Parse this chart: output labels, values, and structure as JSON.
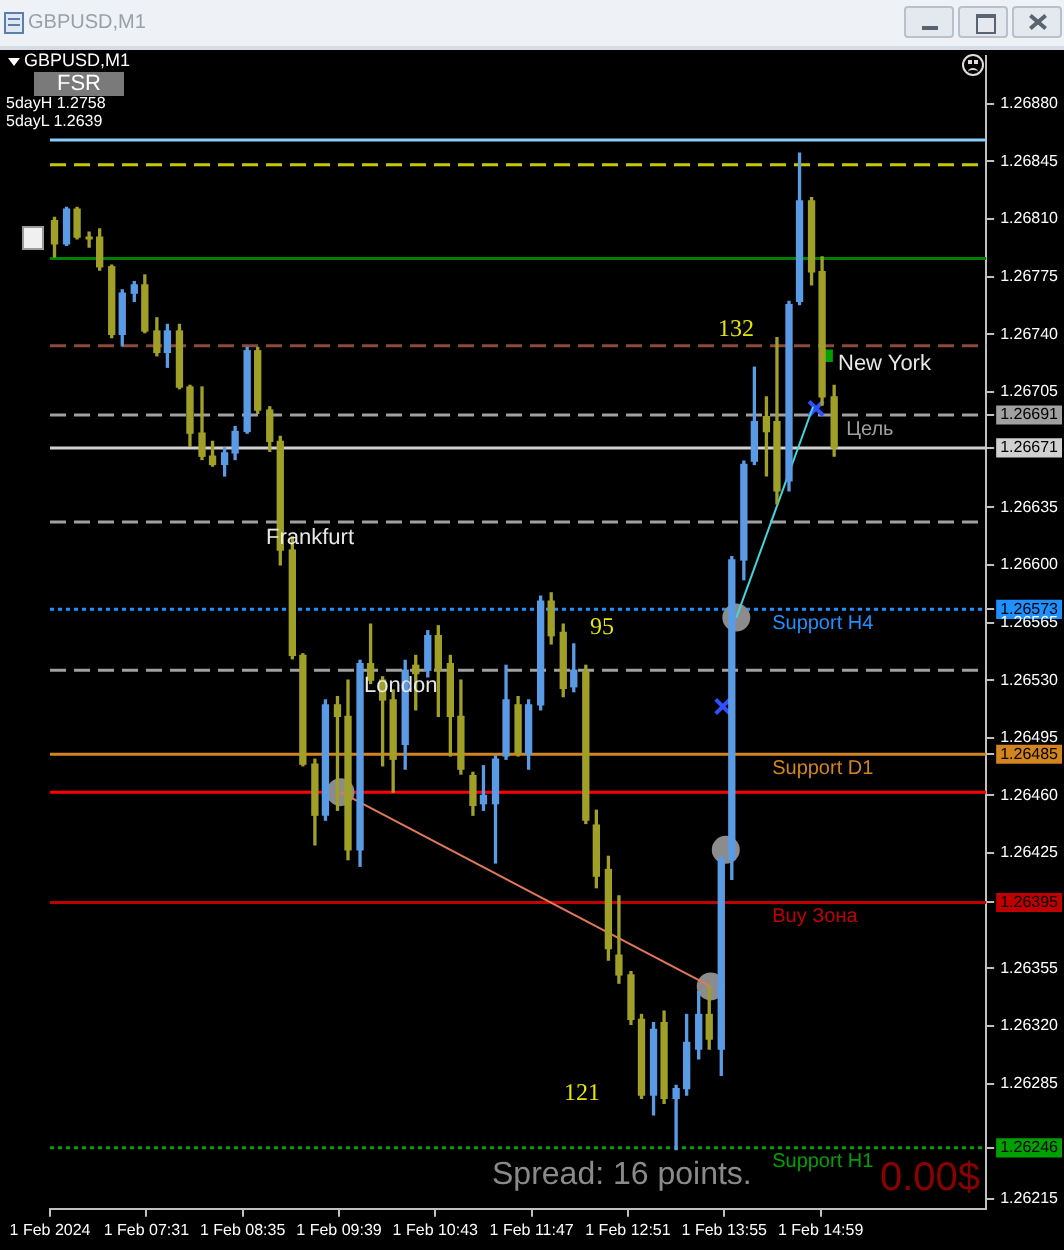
{
  "chart_data": {
    "type": "candlestick",
    "title": "GBPUSD,M1",
    "x": [
      "2024-02-01T06:30",
      "2024-02-01T06:38",
      "2024-02-01T06:45",
      "2024-02-01T06:53",
      "2024-02-01T07:00",
      "2024-02-01T07:08",
      "2024-02-01T07:15",
      "2024-02-01T07:23",
      "2024-02-01T07:30",
      "2024-02-01T07:38",
      "2024-02-01T07:45",
      "2024-02-01T07:53",
      "2024-02-01T08:00",
      "2024-02-01T08:08",
      "2024-02-01T08:15",
      "2024-02-01T08:23",
      "2024-02-01T08:30",
      "2024-02-01T08:38",
      "2024-02-01T08:45",
      "2024-02-01T08:53",
      "2024-02-01T09:00",
      "2024-02-01T09:08",
      "2024-02-01T09:15",
      "2024-02-01T09:23",
      "2024-02-01T09:30",
      "2024-02-01T09:38",
      "2024-02-01T09:45",
      "2024-02-01T09:53",
      "2024-02-01T10:00",
      "2024-02-01T10:08",
      "2024-02-01T10:15",
      "2024-02-01T10:23",
      "2024-02-01T10:30",
      "2024-02-01T10:38",
      "2024-02-01T10:45",
      "2024-02-01T10:53",
      "2024-02-01T11:00",
      "2024-02-01T11:08",
      "2024-02-01T11:15",
      "2024-02-01T11:23",
      "2024-02-01T11:30",
      "2024-02-01T11:38",
      "2024-02-01T11:45",
      "2024-02-01T11:53",
      "2024-02-01T12:00",
      "2024-02-01T12:08",
      "2024-02-01T12:15",
      "2024-02-01T12:23",
      "2024-02-01T12:30",
      "2024-02-01T12:38",
      "2024-02-01T12:45",
      "2024-02-01T12:53",
      "2024-02-01T13:00",
      "2024-02-01T13:08",
      "2024-02-01T13:15",
      "2024-02-01T13:23",
      "2024-02-01T13:30",
      "2024-02-01T13:38",
      "2024-02-01T13:45",
      "2024-02-01T13:53",
      "2024-02-01T14:00",
      "2024-02-01T14:08",
      "2024-02-01T14:15",
      "2024-02-01T14:23",
      "2024-02-01T14:30",
      "2024-02-01T14:38",
      "2024-02-01T14:45",
      "2024-02-01T14:53",
      "2024-02-01T15:00",
      "2024-02-01T15:08"
    ],
    "ohlc": [
      [
        1.26809,
        1.26811,
        1.26787,
        1.26795
      ],
      [
        1.26795,
        1.26817,
        1.26794,
        1.26816
      ],
      [
        1.26816,
        1.26817,
        1.26798,
        1.26799
      ],
      [
        1.26799,
        1.26802,
        1.26793,
        1.26798
      ],
      [
        1.26799,
        1.26804,
        1.26779,
        1.26781
      ],
      [
        1.26781,
        1.26782,
        1.26738,
        1.2674
      ],
      [
        1.2674,
        1.26767,
        1.26733,
        1.26765
      ],
      [
        1.26765,
        1.26772,
        1.2676,
        1.2677
      ],
      [
        1.2677,
        1.26776,
        1.26741,
        1.26742
      ],
      [
        1.26742,
        1.2675,
        1.26727,
        1.26729
      ],
      [
        1.26729,
        1.26746,
        1.2672,
        1.26742
      ],
      [
        1.26742,
        1.26746,
        1.26707,
        1.26708
      ],
      [
        1.26708,
        1.26709,
        1.26672,
        1.2668
      ],
      [
        1.2668,
        1.26708,
        1.26664,
        1.26666
      ],
      [
        1.26666,
        1.26675,
        1.2666,
        1.26661
      ],
      [
        1.26661,
        1.26671,
        1.26654,
        1.26668
      ],
      [
        1.26668,
        1.26684,
        1.26664,
        1.26681
      ],
      [
        1.26681,
        1.26732,
        1.2668,
        1.2673
      ],
      [
        1.2673,
        1.26732,
        1.26692,
        1.26694
      ],
      [
        1.26694,
        1.26696,
        1.26669,
        1.26675
      ],
      [
        1.26675,
        1.26678,
        1.266,
        1.26609
      ],
      [
        1.26609,
        1.26617,
        1.26543,
        1.26545
      ],
      [
        1.26545,
        1.26546,
        1.26478,
        1.26479
      ],
      [
        1.26479,
        1.26482,
        1.2643,
        1.26448
      ],
      [
        1.26448,
        1.26518,
        1.26445,
        1.26515
      ],
      [
        1.26515,
        1.2652,
        1.26451,
        1.26508
      ],
      [
        1.26508,
        1.2653,
        1.26421,
        1.26427
      ],
      [
        1.26427,
        1.26542,
        1.26417,
        1.2654
      ],
      [
        1.2654,
        1.26564,
        1.26528,
        1.2653
      ],
      [
        1.2653,
        1.26532,
        1.26478,
        1.26518
      ],
      [
        1.26518,
        1.26524,
        1.26462,
        1.26482
      ],
      [
        1.26491,
        1.26542,
        1.26476,
        1.26536
      ],
      [
        1.26539,
        1.26545,
        1.26512,
        1.26534
      ],
      [
        1.26536,
        1.2656,
        1.26532,
        1.26557
      ],
      [
        1.26557,
        1.26563,
        1.26508,
        1.26536
      ],
      [
        1.2654,
        1.26545,
        1.26484,
        1.26508
      ],
      [
        1.26508,
        1.2653,
        1.26473,
        1.26476
      ],
      [
        1.26472,
        1.26474,
        1.26448,
        1.26454
      ],
      [
        1.26455,
        1.26478,
        1.26451,
        1.2646
      ],
      [
        1.26455,
        1.26484,
        1.26419,
        1.26482
      ],
      [
        1.26484,
        1.26539,
        1.26482,
        1.26518
      ],
      [
        1.26515,
        1.2652,
        1.26484,
        1.26486
      ],
      [
        1.26485,
        1.26518,
        1.26476,
        1.26515
      ],
      [
        1.26515,
        1.26581,
        1.26512,
        1.26578
      ],
      [
        1.26578,
        1.26583,
        1.26552,
        1.26557
      ],
      [
        1.26559,
        1.26564,
        1.2652,
        1.26525
      ],
      [
        1.26526,
        1.26552,
        1.26523,
        1.26536
      ],
      [
        1.26535,
        1.26539,
        1.26443,
        1.26445
      ],
      [
        1.26442,
        1.26451,
        1.26404,
        1.26411
      ],
      [
        1.26415,
        1.26423,
        1.2636,
        1.26367
      ],
      [
        1.26363,
        1.26399,
        1.26346,
        1.26351
      ],
      [
        1.26351,
        1.26353,
        1.26321,
        1.26324
      ],
      [
        1.26324,
        1.26327,
        1.26276,
        1.26278
      ],
      [
        1.26278,
        1.26322,
        1.26266,
        1.26318
      ],
      [
        1.26322,
        1.26329,
        1.26273,
        1.26276
      ],
      [
        1.26276,
        1.26284,
        1.26245,
        1.26282
      ],
      [
        1.26282,
        1.26327,
        1.26278,
        1.2631
      ],
      [
        1.26306,
        1.26341,
        1.263,
        1.26327
      ],
      [
        1.26327,
        1.26344,
        1.26306,
        1.26312
      ],
      [
        1.26306,
        1.26423,
        1.2629,
        1.26421
      ],
      [
        1.26421,
        1.26605,
        1.26409,
        1.26603
      ],
      [
        1.26603,
        1.26663,
        1.26591,
        1.26661
      ],
      [
        1.26663,
        1.2672,
        1.26661,
        1.26687
      ],
      [
        1.2669,
        1.26702,
        1.26654,
        1.26681
      ],
      [
        1.26687,
        1.26738,
        1.26637,
        1.26645
      ],
      [
        1.26651,
        1.2676,
        1.26645,
        1.26758
      ],
      [
        1.2676,
        1.2685,
        1.26758,
        1.26821
      ],
      [
        1.26821,
        1.26823,
        1.2677,
        1.26778
      ],
      [
        1.26778,
        1.26787,
        1.26697,
        1.26702
      ],
      [
        1.26702,
        1.26709,
        1.26666,
        1.26671
      ]
    ],
    "colors": [
      "#a0a028",
      "#5a9be6",
      "#a0a028",
      "#a0a028",
      "#a0a028",
      "#a0a028",
      "#5a9be6",
      "#5a9be6",
      "#a0a028",
      "#a0a028",
      "#5a9be6",
      "#a0a028",
      "#a0a028",
      "#a0a028",
      "#a0a028",
      "#5a9be6",
      "#5a9be6",
      "#5a9be6",
      "#a0a028",
      "#a0a028",
      "#a0a028",
      "#a0a028",
      "#a0a028",
      "#a0a028",
      "#5a9be6",
      "#a0a028",
      "#a0a028",
      "#5a9be6",
      "#a0a028",
      "#a0a028",
      "#a0a028",
      "#5a9be6",
      "#a0a028",
      "#5a9be6",
      "#a0a028",
      "#a0a028",
      "#a0a028",
      "#a0a028",
      "#5a9be6",
      "#5a9be6",
      "#5a9be6",
      "#a0a028",
      "#5a9be6",
      "#5a9be6",
      "#a0a028",
      "#a0a028",
      "#5a9be6",
      "#a0a028",
      "#a0a028",
      "#a0a028",
      "#a0a028",
      "#a0a028",
      "#a0a028",
      "#5a9be6",
      "#a0a028",
      "#5a9be6",
      "#5a9be6",
      "#5a9be6",
      "#a0a028",
      "#5a9be6",
      "#5a9be6",
      "#5a9be6",
      "#5a9be6",
      "#a0a028",
      "#a0a028",
      "#5a9be6",
      "#5a9be6",
      "#a0a028",
      "#a0a028",
      "#a0a028"
    ],
    "series": [
      {
        "type": "line",
        "color": "#e0785a",
        "marker": "none",
        "x": [
          "2024-02-01T09:40",
          "2024-02-01T13:46"
        ],
        "values": [
          1.26462,
          1.26344
        ]
      },
      {
        "type": "line",
        "color": "#40d8e0",
        "marker": "none",
        "x": [
          "2024-02-01T14:03",
          "2024-02-01T14:54"
        ],
        "values": [
          1.26568,
          1.26696
        ]
      },
      {
        "type": "scatter",
        "color": "#8c8c8c",
        "marker": "circle",
        "x": [
          "2024-02-01T09:40",
          "2024-02-01T13:46",
          "2024-02-01T14:03",
          "2024-02-01T13:56"
        ],
        "values": [
          1.26462,
          1.26344,
          1.26568,
          1.26427
        ]
      },
      {
        "type": "scatter",
        "color": "#3050ff",
        "marker": "cross",
        "x": [
          "2024-02-01T13:54",
          "2024-02-01T14:56"
        ],
        "values": [
          1.26514,
          1.26695
        ]
      },
      {
        "type": "scatter",
        "color": "#00a000",
        "marker": "square",
        "x": [
          "2024-02-01T15:03"
        ],
        "values": [
          1.26727
        ]
      }
    ],
    "xlim": [
      "2024-02-01T06:27",
      "2024-02-01T16:49"
    ],
    "xticks": [
      {
        "value": "2024-02-01T06:27",
        "label": "1 Feb 2024"
      },
      {
        "value": "2024-02-01T07:31",
        "label": "1 Feb 07:31"
      },
      {
        "value": "2024-02-01T08:35",
        "label": "1 Feb 08:35"
      },
      {
        "value": "2024-02-01T09:39",
        "label": "1 Feb 09:39"
      },
      {
        "value": "2024-02-01T10:43",
        "label": "1 Feb 10:43"
      },
      {
        "value": "2024-02-01T11:47",
        "label": "1 Feb 11:47"
      },
      {
        "value": "2024-02-01T12:51",
        "label": "1 Feb 12:51"
      },
      {
        "value": "2024-02-01T13:55",
        "label": "1 Feb 13:55"
      },
      {
        "value": "2024-02-01T14:59",
        "label": "1 Feb 14:59"
      }
    ],
    "ylim": [
      1.26209,
      1.26909
    ],
    "yticks": [
      {
        "value": 1.2688,
        "label": "1.26880"
      },
      1.26845,
      {
        "value": 1.2681,
        "label": "1.26810"
      },
      1.26775,
      {
        "value": 1.2674,
        "label": "1.26740"
      },
      1.26705,
      1.26691,
      1.26671,
      1.26635,
      {
        "value": 1.266,
        "label": "1.26600"
      },
      1.26573,
      1.26565,
      {
        "value": 1.2653,
        "label": "1.26530"
      },
      1.26495,
      1.26485,
      {
        "value": 1.2646,
        "label": "1.26460"
      },
      1.26425,
      1.26395,
      1.26355,
      {
        "value": 1.2632,
        "label": "1.26320"
      },
      1.26285,
      1.26246,
      1.26215
    ],
    "ref_lines": [
      {
        "axis": "y",
        "value": 1.26858,
        "color": "#87cefa",
        "line_style": "solid"
      },
      {
        "axis": "y",
        "value": 1.26843,
        "color": "#c8c800",
        "line_style": "dashed"
      },
      {
        "axis": "y",
        "value": 1.26786,
        "color": "#008000",
        "line_style": "solid"
      },
      {
        "axis": "y",
        "value": 1.26733,
        "color": "#8b4a3a",
        "line_style": "dashed"
      },
      {
        "axis": "y",
        "value": 1.26691,
        "label": "Цель",
        "color": "#a0a0a0",
        "line_style": "dashed"
      },
      {
        "axis": "y",
        "value": 1.26671,
        "color": "#d0d0d0",
        "line_style": "solid"
      },
      {
        "axis": "y",
        "value": 1.26626,
        "color": "#a0a0a0",
        "line_style": "dashed"
      },
      {
        "axis": "y",
        "value": 1.26573,
        "label": "Support H4",
        "color": "#1e90ff",
        "line_style": "dotted"
      },
      {
        "axis": "y",
        "value": 1.26536,
        "color": "#a0a0a0",
        "line_style": "dashed"
      },
      {
        "axis": "y",
        "value": 1.26485,
        "label": "Support D1",
        "color": "#d2841e",
        "line_style": "solid"
      },
      {
        "axis": "y",
        "value": 1.26462,
        "color": "#ff0000",
        "line_style": "solid"
      },
      {
        "axis": "y",
        "value": 1.26395,
        "label": "Buy Зона",
        "color": "#c00000",
        "line_style": "solid"
      },
      {
        "axis": "y",
        "value": 1.26246,
        "label": "Support H1",
        "color": "#00a000",
        "line_style": "dotted"
      }
    ],
    "annotations": [
      "Frankfurt",
      "London",
      "New York",
      "132",
      "95",
      "121",
      "5dayH 1.2758",
      "5dayL 1.2639",
      "FSR",
      "Spread: 16 points.",
      "0.00$"
    ]
  }
}
